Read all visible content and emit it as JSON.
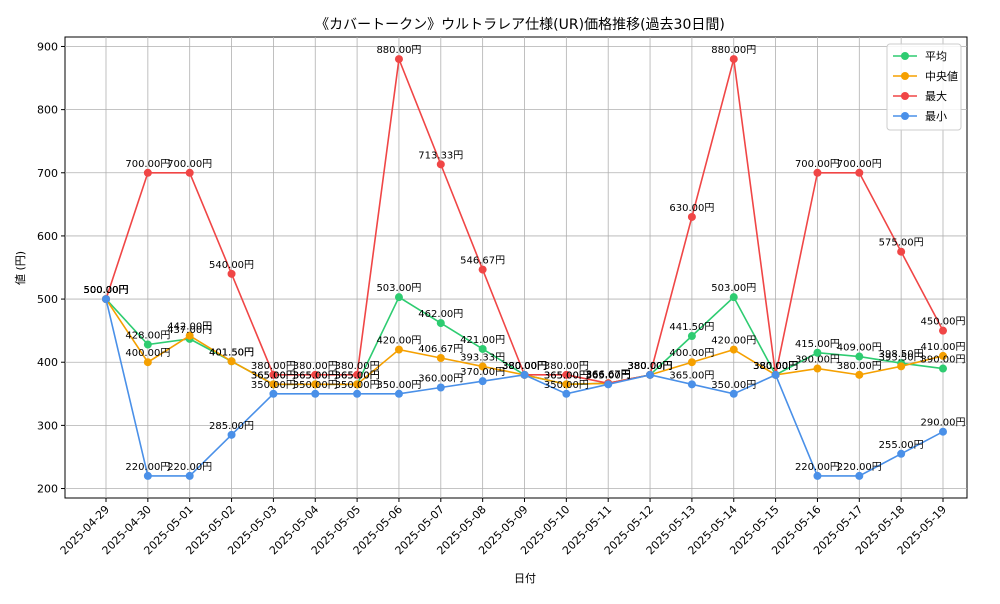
{
  "chart_data": {
    "type": "line",
    "title": "《カバートークン》ウルトラレア仕様(UR)価格推移(過去30日間)",
    "xlabel": "日付",
    "ylabel": "値 (円)",
    "unit_suffix": "円",
    "ylim": [
      185,
      915
    ],
    "yticks": [
      200,
      300,
      400,
      500,
      600,
      700,
      800,
      900
    ],
    "grid": true,
    "legend_position": "top-right",
    "x": [
      "2025-04-29",
      "2025-04-30",
      "2025-05-01",
      "2025-05-02",
      "2025-05-03",
      "2025-05-04",
      "2025-05-05",
      "2025-05-06",
      "2025-05-07",
      "2025-05-08",
      "2025-05-09",
      "2025-05-10",
      "2025-05-11",
      "2025-05-12",
      "2025-05-13",
      "2025-05-14",
      "2025-05-15",
      "2025-05-16",
      "2025-05-17",
      "2025-05-18",
      "2025-05-19"
    ],
    "series": [
      {
        "name": "平均",
        "color": "#2ecc71",
        "values": [
          500,
          428,
          437,
          401.5,
          365,
          365,
          365,
          503,
          462,
          421,
          380,
          365,
          366.67,
          380,
          441.5,
          503,
          380,
          415,
          409,
          398.5,
          390
        ]
      },
      {
        "name": "中央値",
        "color": "#f5a000",
        "values": [
          500,
          400,
          442,
          401.5,
          365,
          365,
          365,
          420,
          406.67,
          393.33,
          380,
          365,
          366.67,
          380,
          400,
          420,
          380,
          390,
          380,
          393.5,
          410
        ]
      },
      {
        "name": "最大",
        "color": "#f04646",
        "values": [
          500,
          700,
          700,
          540,
          380,
          380,
          380,
          880,
          713.33,
          546.67,
          380,
          380,
          366.67,
          380,
          630,
          880,
          380,
          700,
          700,
          575,
          450
        ]
      },
      {
        "name": "最小",
        "color": "#4a90e8",
        "values": [
          500,
          220,
          220,
          285,
          350,
          350,
          350,
          350,
          360,
          370,
          380,
          350,
          365,
          380,
          365,
          350,
          380,
          220,
          220,
          255,
          290
        ]
      }
    ]
  }
}
